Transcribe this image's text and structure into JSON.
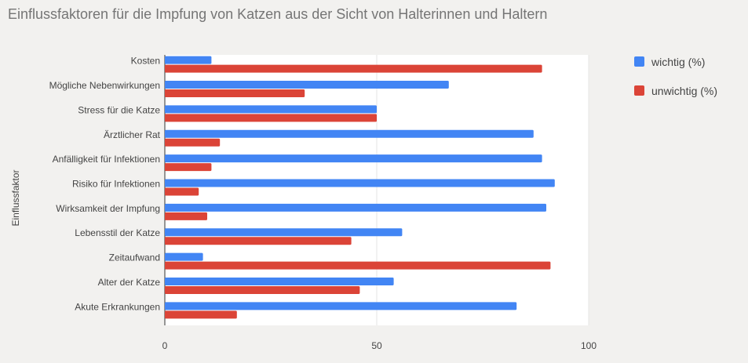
{
  "chart_data": {
    "type": "bar",
    "orientation": "horizontal",
    "title": "Einflussfaktoren für die Impfung von Katzen aus der Sicht von Halterinnen und Haltern",
    "ylabel": "Einflussfaktor",
    "xlabel": "",
    "xlim": [
      0,
      100
    ],
    "xticks": [
      "0",
      "50",
      "100"
    ],
    "grid": true,
    "legend_position": "right",
    "categories": [
      "Kosten",
      "Mögliche Nebenwirkungen",
      "Stress für die Katze",
      "Ärztlicher Rat",
      "Anfälligkeit für Infektionen",
      "Risiko für Infektionen",
      "Wirksamkeit der Impfung",
      "Lebensstil der Katze",
      "Zeitaufwand",
      "Alter der Katze",
      "Akute Erkrankungen"
    ],
    "series": [
      {
        "name": "wichtig (%)",
        "color": "#4285f4",
        "values": [
          11,
          67,
          50,
          87,
          89,
          92,
          90,
          56,
          9,
          54,
          83
        ]
      },
      {
        "name": "unwichtig (%)",
        "color": "#db4437",
        "values": [
          89,
          33,
          50,
          13,
          11,
          8,
          10,
          44,
          91,
          46,
          17
        ]
      }
    ]
  }
}
